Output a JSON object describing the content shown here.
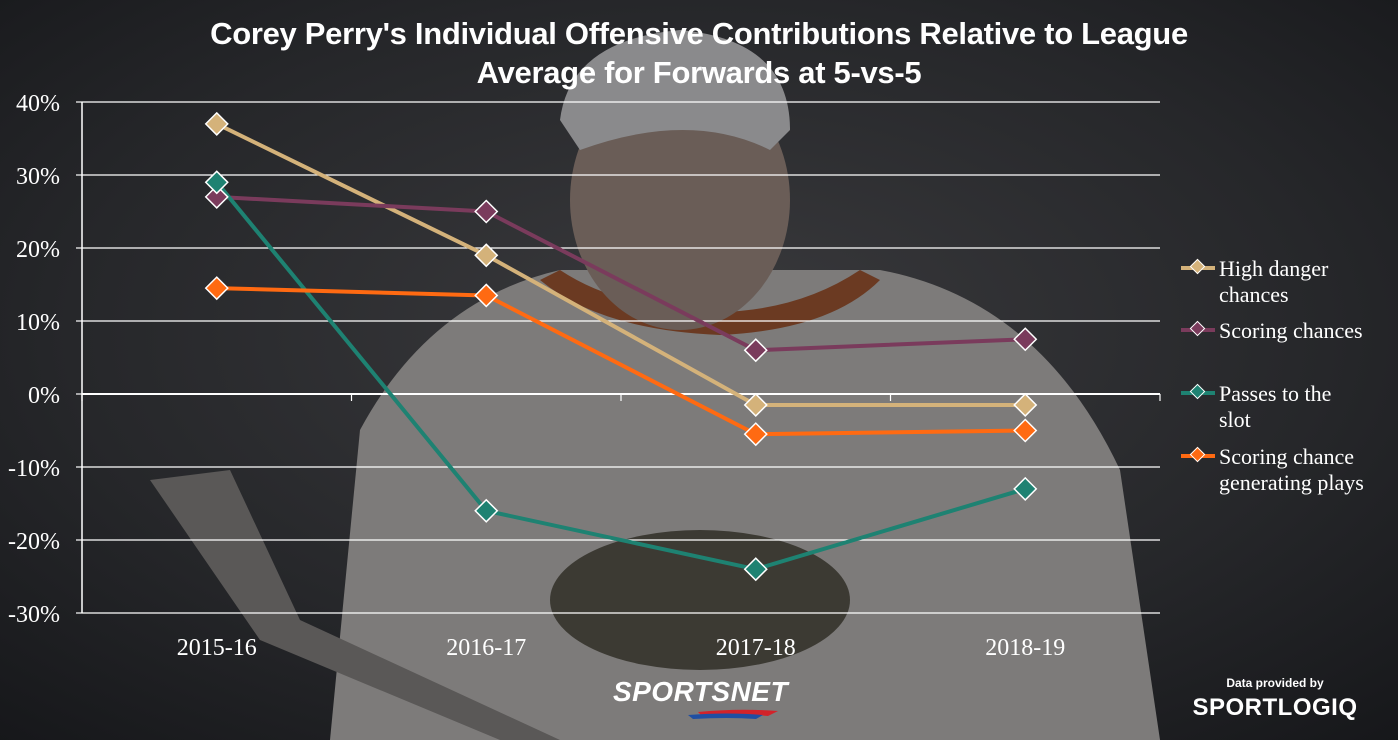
{
  "chart_data": {
    "type": "line",
    "title": "Corey Perry's Individual Offensive Contributions Relative to League Average for Forwards at 5-vs-5",
    "title_lines": [
      "Corey Perry's Individual Offensive Contributions Relative to League",
      "Average for Forwards at 5-vs-5"
    ],
    "categories": [
      "2015-16",
      "2016-17",
      "2017-18",
      "2018-19"
    ],
    "ylim": [
      -30,
      40
    ],
    "yticks": [
      "40%",
      "30%",
      "20%",
      "10%",
      "0%",
      "-10%",
      "-20%",
      "-30%"
    ],
    "ytick_values": [
      40,
      30,
      20,
      10,
      0,
      -10,
      -20,
      -30
    ],
    "grid": true,
    "legend_position": "right",
    "series": [
      {
        "name": "High danger chances",
        "legend_lines": [
          "High danger",
          "chances"
        ],
        "color": "#d4b27a",
        "values": [
          37,
          19,
          -1.5,
          -1.5
        ]
      },
      {
        "name": "Scoring chances",
        "legend_lines": [
          "Scoring chances"
        ],
        "color": "#7a3b5c",
        "values": [
          27,
          25,
          6,
          7.5
        ]
      },
      {
        "name": "Passes to the slot",
        "legend_lines": [
          "Passes to the",
          "slot"
        ],
        "color": "#1e8272",
        "values": [
          29,
          -16,
          -24,
          -13
        ]
      },
      {
        "name": "Scoring chance generating plays",
        "legend_lines": [
          "Scoring chance",
          "generating plays"
        ],
        "color": "#ff6a12",
        "values": [
          14.5,
          13.5,
          -5.5,
          -5
        ]
      }
    ]
  },
  "branding": {
    "sportsnet": "SPORTSNET",
    "provided_by": "Data provided by",
    "sportlogiq": "SPORTLOGIQ"
  }
}
